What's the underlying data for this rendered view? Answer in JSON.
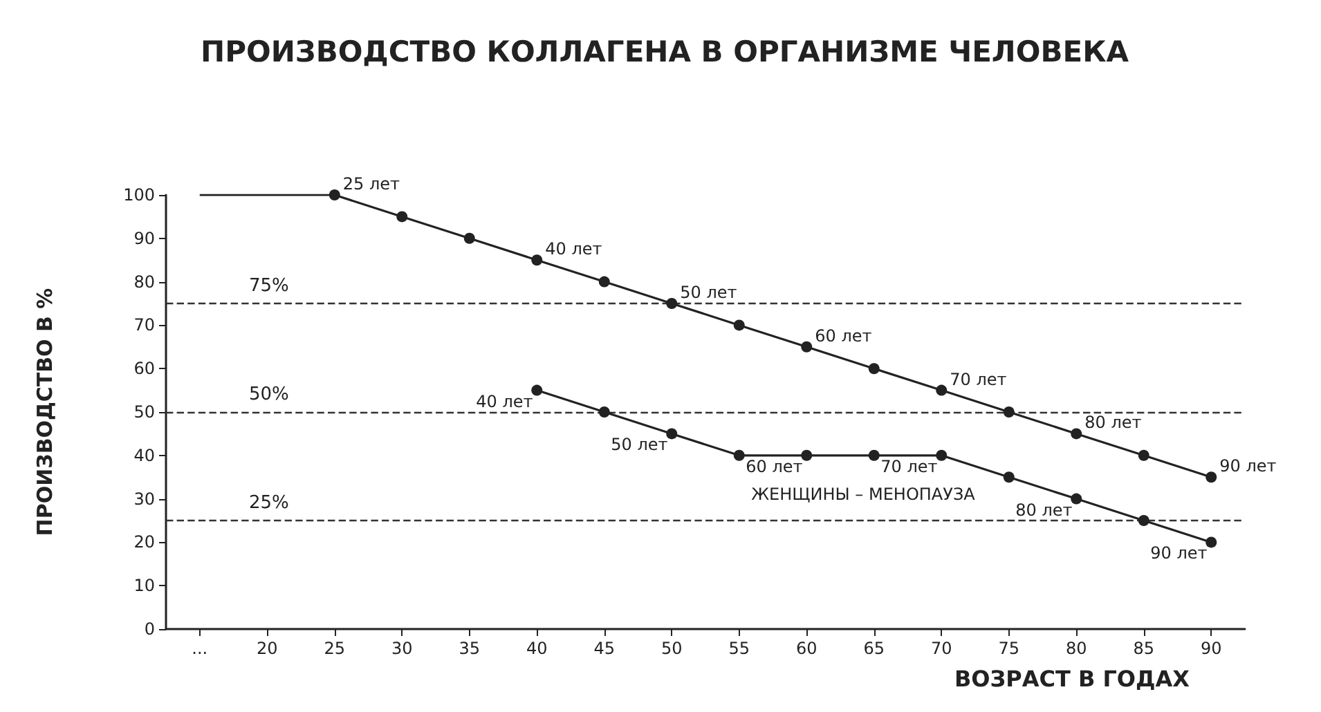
{
  "chart_data": {
    "type": "line",
    "title": "ПРОИЗВОДСТВО КОЛЛАГЕНА В ОРГАНИЗМЕ ЧЕЛОВЕКА",
    "xlabel": "ВОЗРАСТ В ГОДАХ",
    "ylabel": "ПРОИЗВОДСТВО В %",
    "categories": [
      "...",
      "20",
      "25",
      "30",
      "35",
      "40",
      "45",
      "50",
      "55",
      "60",
      "65",
      "70",
      "75",
      "80",
      "85",
      "90"
    ],
    "series": [
      {
        "color": "#222222",
        "marker": "none",
        "values": [
          100,
          100,
          100,
          null,
          null,
          null,
          null,
          null,
          null,
          null,
          null,
          null,
          null,
          null,
          null,
          null
        ]
      },
      {
        "color": "#222222",
        "marker": "circle",
        "values": [
          null,
          null,
          100,
          95,
          90,
          85,
          80,
          75,
          70,
          65,
          60,
          55,
          50,
          45,
          40,
          35
        ]
      },
      {
        "name": "ЖЕНЩИНЫ – МЕНОПАУЗА",
        "color": "#222222",
        "marker": "circle",
        "values": [
          null,
          null,
          null,
          null,
          null,
          55,
          50,
          45,
          40,
          40,
          40,
          40,
          35,
          30,
          25,
          20
        ]
      }
    ],
    "annotations": [
      {
        "text": "25 лет",
        "x": "25",
        "y": 100
      },
      {
        "text": "40 лет",
        "x": "40",
        "y": 85
      },
      {
        "text": "50 лет",
        "x": "50",
        "y": 75
      },
      {
        "text": "60 лет",
        "x": "60",
        "y": 65
      },
      {
        "text": "70 лет",
        "x": "70",
        "y": 55
      },
      {
        "text": "80 лет",
        "x": "80",
        "y": 45
      },
      {
        "text": "90 лет",
        "x": "90",
        "y": 35
      },
      {
        "text": "40 лет",
        "x": "40",
        "y": 55
      },
      {
        "text": "50 лет",
        "x": "50",
        "y": 45
      },
      {
        "text": "60 лет",
        "x": "60",
        "y": 40
      },
      {
        "text": "70 лет",
        "x": "70",
        "y": 40
      },
      {
        "text": "80 лет",
        "x": "80",
        "y": 30
      },
      {
        "text": "90 лет",
        "x": "90",
        "y": 20
      }
    ],
    "ylim": [
      0,
      100
    ],
    "yticks": [
      0,
      10,
      20,
      30,
      40,
      50,
      60,
      70,
      80,
      90,
      100
    ],
    "grid": false,
    "legend": false,
    "line_style": "solid",
    "ref_lines": [
      {
        "axis": "y",
        "value": 75,
        "label": "75%",
        "color": "#333333",
        "line_style": "dashed"
      },
      {
        "axis": "y",
        "value": 50,
        "label": "50%",
        "color": "#333333",
        "line_style": "dashed"
      },
      {
        "axis": "y",
        "value": 25,
        "label": "25%",
        "color": "#333333",
        "line_style": "dashed"
      }
    ]
  }
}
